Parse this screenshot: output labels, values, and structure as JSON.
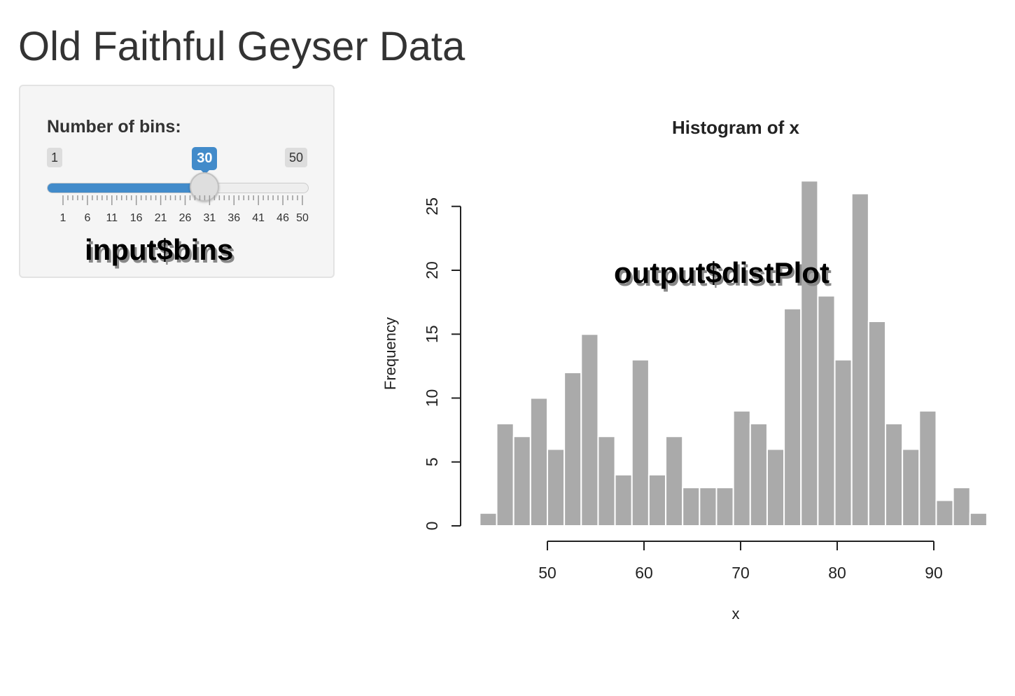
{
  "page": {
    "title": "Old Faithful Geyser Data"
  },
  "sidebar": {
    "slider": {
      "label": "Number of bins:",
      "min": 1,
      "max": 50,
      "min_label": "1",
      "max_label": "50",
      "value": 30,
      "value_label": "30",
      "grid_labels": [
        "1",
        "6",
        "11",
        "16",
        "21",
        "26",
        "31",
        "36",
        "41",
        "46",
        "50"
      ],
      "accent_color": "#428bca"
    },
    "annotation": "input$bins"
  },
  "main": {
    "annotation": "output$distPlot"
  },
  "chart_data": {
    "type": "bar",
    "title": "Histogram of x",
    "xlabel": "x",
    "ylabel": "Frequency",
    "bin_start": 43,
    "bin_width": 1.75,
    "values": [
      1,
      8,
      7,
      10,
      6,
      12,
      15,
      7,
      4,
      13,
      4,
      7,
      3,
      3,
      3,
      9,
      8,
      6,
      17,
      27,
      18,
      13,
      26,
      16,
      8,
      6,
      9,
      2,
      3,
      1
    ],
    "x_ticks": [
      "50",
      "60",
      "70",
      "80",
      "90"
    ],
    "y_ticks": [
      "0",
      "5",
      "10",
      "15",
      "20",
      "25"
    ],
    "xlim": [
      43,
      96
    ],
    "ylim": [
      0,
      27
    ],
    "bar_color": "#aaaaaa"
  }
}
